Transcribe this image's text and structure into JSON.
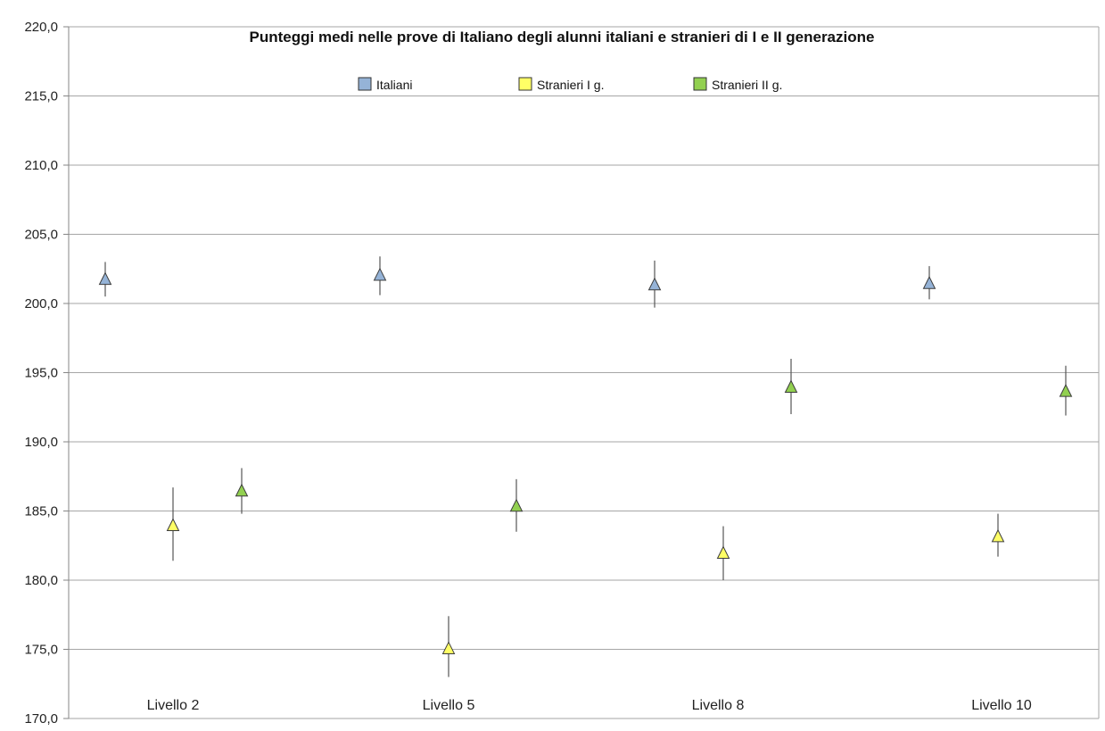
{
  "chart_data": {
    "type": "scatter",
    "title": "Punteggi medi nelle prove di Italiano degli alunni italiani e stranieri di I e II generazione",
    "xlabel": "",
    "ylabel": "",
    "ylim": [
      170,
      220
    ],
    "y_ticks": [
      "170,0",
      "175,0",
      "180,0",
      "185,0",
      "190,0",
      "195,0",
      "200,0",
      "205,0",
      "210,0",
      "215,0",
      "220,0"
    ],
    "categories": [
      "Livello 2",
      "Livello 5",
      "Livello 8",
      "Livello 10"
    ],
    "grid": true,
    "legend_position": "top",
    "series": [
      {
        "name": "Italiani",
        "color": "#95b3d7",
        "marker": "triangle",
        "values": [
          201.7,
          202.0,
          201.3,
          201.4
        ],
        "error_low": [
          200.5,
          200.6,
          199.7,
          200.3
        ],
        "error_high": [
          203.0,
          203.4,
          203.1,
          202.7
        ]
      },
      {
        "name": "Stranieri I g.",
        "color": "#ffff66",
        "marker": "triangle",
        "values": [
          183.9,
          175.0,
          181.9,
          183.1
        ],
        "error_low": [
          181.4,
          173.0,
          180.0,
          181.7
        ],
        "error_high": [
          186.7,
          177.4,
          183.9,
          184.8
        ]
      },
      {
        "name": "Stranieri II g.",
        "color": "#92d050",
        "marker": "triangle",
        "values": [
          186.4,
          185.3,
          193.9,
          193.6
        ],
        "error_low": [
          184.8,
          183.5,
          192.0,
          191.9
        ],
        "error_high": [
          188.1,
          187.3,
          196.0,
          195.5
        ]
      }
    ]
  }
}
